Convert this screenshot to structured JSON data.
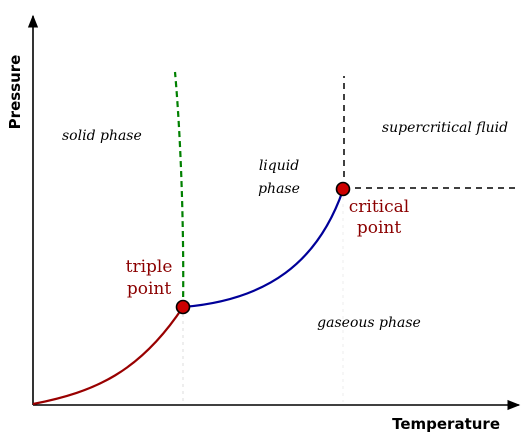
{
  "axes": {
    "x_label": "Temperature",
    "y_label": "Pressure"
  },
  "regions": {
    "solid": "solid phase",
    "liquid_line1": "liquid",
    "liquid_line2": "phase",
    "gas": "gaseous phase",
    "supercritical": "supercritical fluid"
  },
  "points": {
    "triple_line1": "triple",
    "triple_line2": "point",
    "critical_line1": "critical",
    "critical_line2": "point"
  },
  "colors": {
    "sublimation_curve": "#990000",
    "vaporization_curve": "#000099",
    "fusion_curve": "#008000",
    "point_fill": "#cc0000",
    "label_color": "#8b0000",
    "axis": "#000000"
  }
}
